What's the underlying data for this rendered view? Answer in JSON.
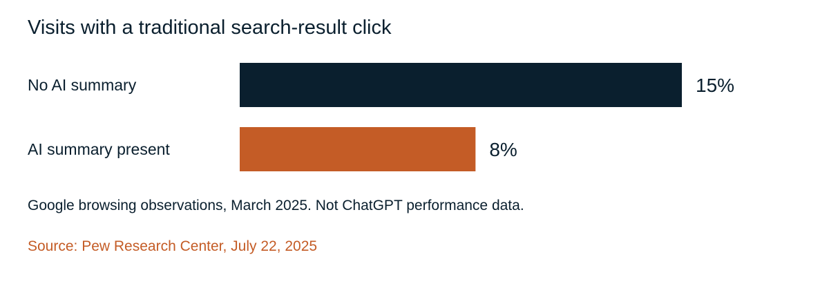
{
  "title": "Visits with a traditional search-result click",
  "note": "Google browsing observations, March 2025. Not ChatGPT performance data.",
  "source": "Source: Pew Research Center, July 22, 2025",
  "colors": {
    "text": "#0a1f2e",
    "accent": "#c45c26"
  },
  "chart_data": {
    "type": "bar",
    "orientation": "horizontal",
    "categories": [
      "No AI summary",
      "AI summary present"
    ],
    "values": [
      15,
      8
    ],
    "value_labels": [
      "15%",
      "8%"
    ],
    "bar_colors": [
      "#0a1f2e",
      "#c45c26"
    ],
    "xlim": [
      0,
      15
    ],
    "grid": false,
    "legend": "none"
  }
}
